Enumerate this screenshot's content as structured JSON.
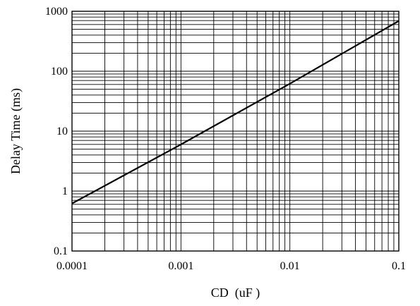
{
  "chart_data": {
    "type": "line",
    "title": "",
    "xlabel": "CD  (uF )",
    "ylabel": "Delay Time (ms)",
    "xscale": "log",
    "yscale": "log",
    "xlim": [
      0.0001,
      0.1
    ],
    "ylim": [
      0.1,
      1000
    ],
    "grid": true,
    "x_ticks": [
      {
        "value": 0.0001,
        "label": "0.0001"
      },
      {
        "value": 0.001,
        "label": "0.001"
      },
      {
        "value": 0.01,
        "label": "0.01"
      },
      {
        "value": 0.1,
        "label": "0.1"
      }
    ],
    "y_ticks": [
      {
        "value": 0.1,
        "label": "0.1"
      },
      {
        "value": 1,
        "label": "1"
      },
      {
        "value": 10,
        "label": "10"
      },
      {
        "value": 100,
        "label": "100"
      },
      {
        "value": 1000,
        "label": "1000"
      }
    ],
    "series": [
      {
        "x": [
          0.0001,
          0.001,
          0.01,
          0.1
        ],
        "y": [
          0.62,
          6,
          62,
          690
        ]
      }
    ]
  }
}
